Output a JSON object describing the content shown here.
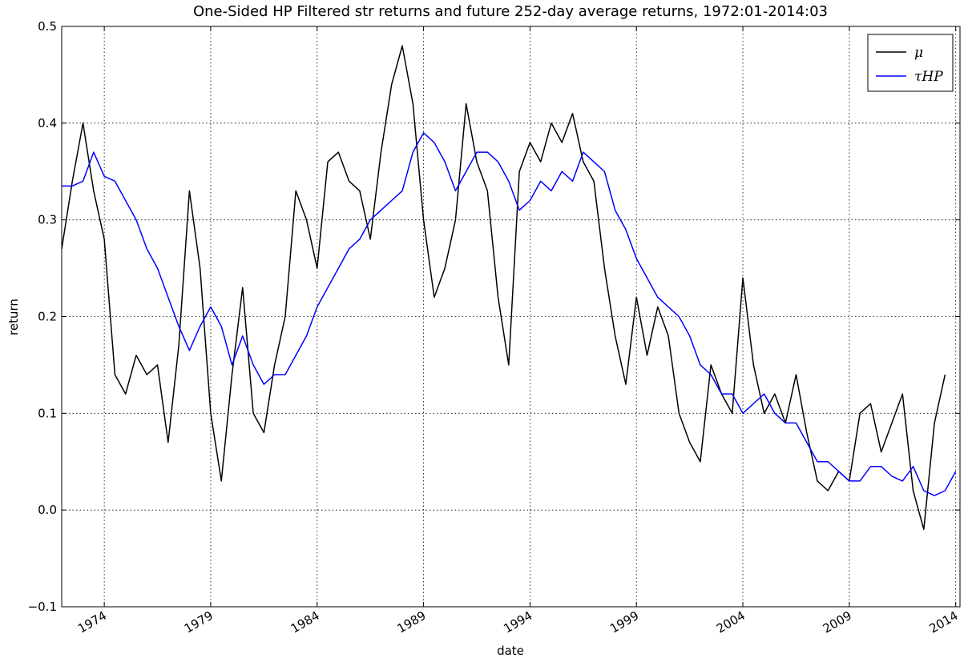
{
  "chart_data": {
    "type": "line",
    "title": "One-Sided HP Filtered str returns and future 252-day average returns, 1972:01-2014:03",
    "x_label": "date",
    "y_label": "return",
    "x": [
      1972,
      1972.5,
      1973,
      1973.5,
      1974,
      1974.5,
      1975,
      1975.5,
      1976,
      1976.5,
      1977,
      1977.5,
      1978,
      1978.5,
      1979,
      1979.5,
      1980,
      1980.5,
      1981,
      1981.5,
      1982,
      1982.5,
      1983,
      1983.5,
      1984,
      1984.5,
      1985,
      1985.5,
      1986,
      1986.5,
      1987,
      1987.5,
      1988,
      1988.5,
      1989,
      1989.5,
      1990,
      1990.5,
      1991,
      1991.5,
      1992,
      1992.5,
      1993,
      1993.5,
      1994,
      1994.5,
      1995,
      1995.5,
      1996,
      1996.5,
      1997,
      1997.5,
      1998,
      1998.5,
      1999,
      1999.5,
      2000,
      2000.5,
      2001,
      2001.5,
      2002,
      2002.5,
      2003,
      2003.5,
      2004,
      2004.5,
      2005,
      2005.5,
      2006,
      2006.5,
      2007,
      2007.5,
      2008,
      2008.5,
      2009,
      2009.5,
      2010,
      2010.5,
      2011,
      2011.5,
      2012,
      2012.5,
      2013,
      2013.5,
      2014
    ],
    "series": [
      {
        "name": "μ",
        "color": "#000000",
        "values": [
          0.27,
          0.34,
          0.4,
          0.33,
          0.28,
          0.14,
          0.12,
          0.16,
          0.14,
          0.15,
          0.07,
          0.17,
          0.33,
          0.25,
          0.1,
          0.03,
          0.14,
          0.23,
          0.1,
          0.08,
          0.15,
          0.2,
          0.33,
          0.3,
          0.25,
          0.36,
          0.37,
          0.34,
          0.33,
          0.28,
          0.37,
          0.44,
          0.48,
          0.42,
          0.3,
          0.22,
          0.25,
          0.3,
          0.42,
          0.36,
          0.33,
          0.22,
          0.15,
          0.35,
          0.38,
          0.36,
          0.4,
          0.38,
          0.41,
          0.36,
          0.34,
          0.25,
          0.18,
          0.13,
          0.22,
          0.16,
          0.21,
          0.18,
          0.1,
          0.07,
          0.05,
          0.15,
          0.12,
          0.1,
          0.24,
          0.15,
          0.1,
          0.12,
          0.09,
          0.14,
          0.08,
          0.03,
          0.02,
          0.04,
          0.03,
          0.1,
          0.11,
          0.06,
          0.09,
          0.12,
          0.02,
          -0.02,
          0.09,
          0.14,
          null
        ]
      },
      {
        "name": "τHP",
        "color": "#0000ff",
        "values": [
          0.335,
          0.335,
          0.34,
          0.37,
          0.345,
          0.34,
          0.32,
          0.3,
          0.27,
          0.25,
          0.22,
          0.19,
          0.165,
          0.19,
          0.21,
          0.19,
          0.15,
          0.18,
          0.15,
          0.13,
          0.14,
          0.14,
          0.16,
          0.18,
          0.21,
          0.23,
          0.25,
          0.27,
          0.28,
          0.3,
          0.31,
          0.32,
          0.33,
          0.37,
          0.39,
          0.38,
          0.36,
          0.33,
          0.35,
          0.37,
          0.37,
          0.36,
          0.34,
          0.31,
          0.32,
          0.34,
          0.33,
          0.35,
          0.34,
          0.37,
          0.36,
          0.35,
          0.31,
          0.29,
          0.26,
          0.24,
          0.22,
          0.21,
          0.2,
          0.18,
          0.15,
          0.14,
          0.12,
          0.12,
          0.1,
          0.11,
          0.12,
          0.1,
          0.09,
          0.09,
          0.07,
          0.05,
          0.05,
          0.04,
          0.03,
          0.03,
          0.045,
          0.045,
          0.035,
          0.03,
          0.045,
          0.02,
          0.015,
          0.02,
          0.04
        ]
      }
    ],
    "xlim": [
      1972,
      2014.2
    ],
    "xticks": [
      1974,
      1979,
      1984,
      1989,
      1994,
      1999,
      2004,
      2009,
      2014
    ],
    "ylim": [
      -0.1,
      0.5
    ],
    "yticks": [
      {
        "value": -0.1,
        "label": "−0.1"
      },
      {
        "value": 0,
        "label": "0.0"
      },
      0.1,
      0.2,
      0.3,
      0.4,
      0.5
    ],
    "grid": true,
    "legend": "upper right"
  }
}
